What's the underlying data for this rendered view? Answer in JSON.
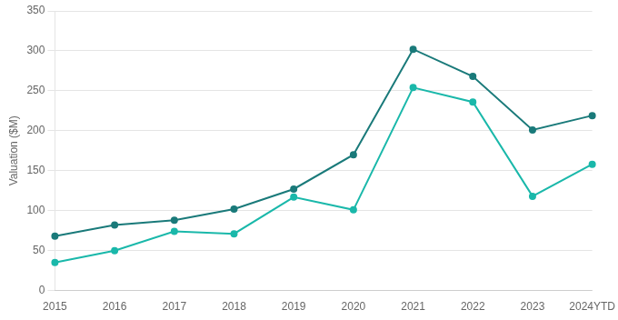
{
  "chart_data": {
    "type": "line",
    "categories": [
      "2015",
      "2016",
      "2017",
      "2018",
      "2019",
      "2020",
      "2021",
      "2022",
      "2023",
      "2024YTD"
    ],
    "series": [
      {
        "color": "#1a7a7a",
        "marker": "circle",
        "values": [
          68,
          82,
          88,
          102,
          127,
          170,
          302,
          268,
          201,
          219
        ]
      },
      {
        "color": "#1ab8aa",
        "marker": "circle",
        "values": [
          35,
          50,
          74,
          71,
          117,
          101,
          254,
          236,
          118,
          158
        ]
      }
    ],
    "ylabel": "Valuation ($M)",
    "ylim": [
      0,
      350
    ],
    "yticks": [
      0,
      50,
      100,
      150,
      200,
      250,
      300,
      350
    ],
    "grid": true
  }
}
